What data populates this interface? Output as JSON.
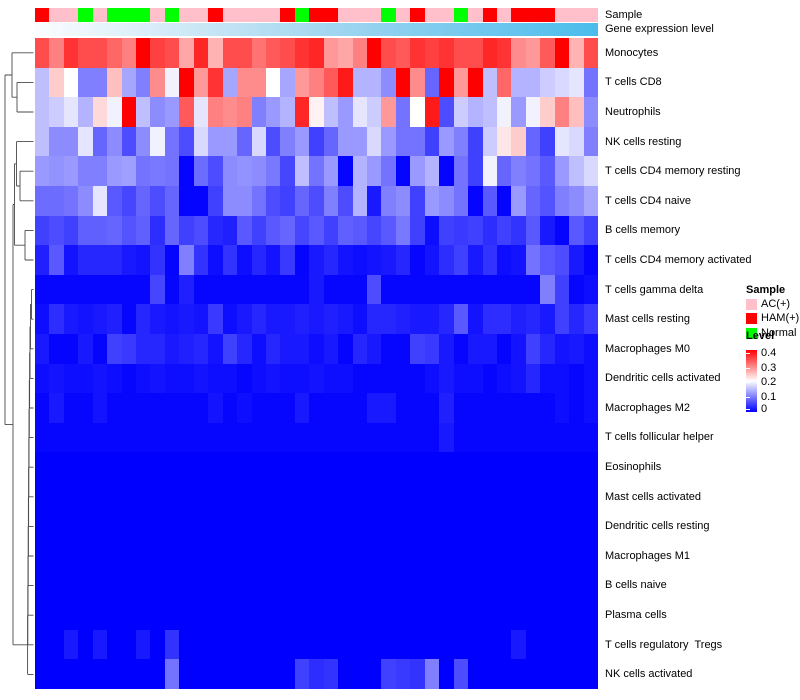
{
  "annotations": {
    "sample_label": "Sample",
    "gene_label": "Gene expression level",
    "annotation_colors": {
      "AC(+)": "#FFC0CB",
      "HAM(+)": "#FF0000",
      "Normal": "#00FF00"
    },
    "gene_gradient": {
      "start": "#FBFDFF",
      "mid": "#A8D8F0",
      "end": "#4ABCEC"
    }
  },
  "legend": {
    "sample_title": "Sample",
    "sample_items": [
      {
        "label": "AC(+)",
        "color": "#FFC0CB"
      },
      {
        "label": "HAM(+)",
        "color": "#FF0000"
      },
      {
        "label": "Normal",
        "color": "#00FF00"
      }
    ],
    "level_title": "Level",
    "level_ticks": [
      "0.4",
      "0.3",
      "0.2",
      "0.1",
      "0"
    ],
    "level_gradient": {
      "top": "#FF0000",
      "mid": "#FFFFFF",
      "bottom": "#0000FF"
    }
  },
  "chart_data": {
    "type": "heatmap",
    "value_range": [
      0,
      0.4
    ],
    "colormap": {
      "low": "#0000FF",
      "mid": "#FFFFFF",
      "high": "#FF0000",
      "mid_value": 0.2
    },
    "n_columns": 39,
    "column_annotations": {
      "Sample": [
        "HAM(+)",
        "AC(+)",
        "AC(+)",
        "Normal",
        "AC(+)",
        "Normal",
        "Normal",
        "Normal",
        "AC(+)",
        "Normal",
        "AC(+)",
        "AC(+)",
        "HAM(+)",
        "AC(+)",
        "AC(+)",
        "AC(+)",
        "AC(+)",
        "HAM(+)",
        "Normal",
        "HAM(+)",
        "HAM(+)",
        "AC(+)",
        "AC(+)",
        "AC(+)",
        "Normal",
        "AC(+)",
        "HAM(+)",
        "AC(+)",
        "AC(+)",
        "Normal",
        "AC(+)",
        "HAM(+)",
        "AC(+)",
        "HAM(+)",
        "HAM(+)",
        "HAM(+)",
        "AC(+)",
        "AC(+)",
        "AC(+)"
      ],
      "Gene expression level": "continuous white-to-skyblue, increasing left to right"
    },
    "row_labels": [
      "Monocytes",
      "T cells CD8",
      "Neutrophils",
      "NK cells resting",
      "T cells CD4 memory resting",
      "T cells CD4 naive",
      "B cells memory",
      "T cells CD4 memory activated",
      "T cells gamma delta",
      "Mast cells resting",
      "Macrophages M0",
      "Dendritic cells activated",
      "Macrophages M2",
      "T cells follicular helper",
      "Eosinophils",
      "Mast cells activated",
      "Dendritic cells resting",
      "Macrophages M1",
      "B cells naive",
      "Plasma cells",
      "T cells regulatory  Tregs",
      "NK cells activated"
    ],
    "values": [
      [
        0.34,
        0.3,
        0.36,
        0.34,
        0.34,
        0.32,
        0.3,
        0.4,
        0.35,
        0.34,
        0.27,
        0.37,
        0.26,
        0.34,
        0.34,
        0.31,
        0.33,
        0.34,
        0.36,
        0.37,
        0.28,
        0.27,
        0.3,
        0.4,
        0.34,
        0.33,
        0.36,
        0.35,
        0.36,
        0.34,
        0.34,
        0.37,
        0.36,
        0.29,
        0.28,
        0.33,
        0.4,
        0.26,
        0.34
      ],
      [
        0.15,
        0.24,
        0.2,
        0.1,
        0.1,
        0.25,
        0.13,
        0.1,
        0.29,
        0.19,
        0.4,
        0.28,
        0.36,
        0.13,
        0.29,
        0.29,
        0.2,
        0.13,
        0.28,
        0.3,
        0.33,
        0.38,
        0.14,
        0.14,
        0.11,
        0.4,
        0.29,
        0.08,
        0.4,
        0.28,
        0.4,
        0.15,
        0.32,
        0.14,
        0.14,
        0.16,
        0.17,
        0.18,
        0.09
      ],
      [
        0.15,
        0.16,
        0.18,
        0.14,
        0.23,
        0.19,
        0.4,
        0.15,
        0.11,
        0.12,
        0.33,
        0.18,
        0.3,
        0.29,
        0.3,
        0.1,
        0.12,
        0.14,
        0.37,
        0.21,
        0.15,
        0.12,
        0.18,
        0.16,
        0.28,
        0.09,
        0.2,
        0.38,
        0.06,
        0.16,
        0.14,
        0.15,
        0.19,
        0.12,
        0.19,
        0.24,
        0.3,
        0.25,
        0.11
      ],
      [
        0.15,
        0.11,
        0.11,
        0.18,
        0.08,
        0.11,
        0.06,
        0.11,
        0.19,
        0.09,
        0.06,
        0.17,
        0.12,
        0.12,
        0.08,
        0.17,
        0.06,
        0.1,
        0.12,
        0.05,
        0.08,
        0.12,
        0.12,
        0.17,
        0.12,
        0.09,
        0.09,
        0.05,
        0.12,
        0.1,
        0.05,
        0.16,
        0.22,
        0.24,
        0.08,
        0.05,
        0.18,
        0.17,
        0.1
      ],
      [
        0.12,
        0.115,
        0.12,
        0.1,
        0.1,
        0.12,
        0.125,
        0.09,
        0.095,
        0.09,
        0.003,
        0.085,
        0.06,
        0.11,
        0.115,
        0.11,
        0.095,
        0.055,
        0.15,
        0.09,
        0.12,
        0.003,
        0.14,
        0.12,
        0.09,
        0.003,
        0.12,
        0.14,
        0.003,
        0.09,
        0.05,
        0.19,
        0.08,
        0.1,
        0.09,
        0.07,
        0.12,
        0.15,
        0.17
      ],
      [
        0.085,
        0.085,
        0.09,
        0.11,
        0.18,
        0.07,
        0.055,
        0.08,
        0.06,
        0.08,
        0.003,
        0.003,
        0.05,
        0.11,
        0.11,
        0.09,
        0.06,
        0.05,
        0.08,
        0.06,
        0.1,
        0.06,
        0.14,
        0.02,
        0.1,
        0.11,
        0.05,
        0.12,
        0.11,
        0.09,
        0.003,
        0.07,
        0.003,
        0.12,
        0.08,
        0.065,
        0.1,
        0.11,
        0.13
      ],
      [
        0.05,
        0.06,
        0.05,
        0.075,
        0.075,
        0.08,
        0.065,
        0.075,
        0.035,
        0.08,
        0.05,
        0.06,
        0.03,
        0.025,
        0.07,
        0.05,
        0.07,
        0.08,
        0.055,
        0.07,
        0.05,
        0.075,
        0.07,
        0.055,
        0.07,
        0.095,
        0.05,
        0.01,
        0.05,
        0.045,
        0.05,
        0.035,
        0.05,
        0.04,
        0.07,
        0.02,
        0.003,
        0.07,
        0.05
      ],
      [
        0.025,
        0.07,
        0.015,
        0.03,
        0.03,
        0.03,
        0.02,
        0.015,
        0.04,
        0.003,
        0.1,
        0.04,
        0.01,
        0.04,
        0.01,
        0.03,
        0.015,
        0.045,
        0.003,
        0.02,
        0.03,
        0.015,
        0.01,
        0.015,
        0.02,
        0.03,
        0.005,
        0.015,
        0.035,
        0.05,
        0.02,
        0.04,
        0.01,
        0.015,
        0.09,
        0.07,
        0.06,
        0.02,
        0.003
      ],
      [
        0.005,
        0.005,
        0.005,
        0.005,
        0.005,
        0.005,
        0.005,
        0.005,
        0.055,
        0.005,
        0.025,
        0.005,
        0.005,
        0.005,
        0.005,
        0.005,
        0.005,
        0.005,
        0.005,
        0.02,
        0.005,
        0.005,
        0.005,
        0.06,
        0.005,
        0.005,
        0.005,
        0.005,
        0.005,
        0.005,
        0.005,
        0.005,
        0.005,
        0.005,
        0.005,
        0.1,
        0.05,
        0.005,
        0.01
      ],
      [
        0.01,
        0.035,
        0.02,
        0.015,
        0.02,
        0.025,
        0.005,
        0.03,
        0.02,
        0.015,
        0.02,
        0.015,
        0.045,
        0.01,
        0.02,
        0.03,
        0.02,
        0.02,
        0.025,
        0.02,
        0.025,
        0.02,
        0.01,
        0.03,
        0.03,
        0.025,
        0.02,
        0.02,
        0.03,
        0.07,
        0.015,
        0.035,
        0.035,
        0.025,
        0.03,
        0.02,
        0.05,
        0.03,
        0.045
      ],
      [
        0.02,
        0.003,
        0.003,
        0.02,
        0.003,
        0.05,
        0.045,
        0.03,
        0.03,
        0.02,
        0.025,
        0.03,
        0.015,
        0.05,
        0.03,
        0.01,
        0.03,
        0.02,
        0.02,
        0.01,
        0.02,
        0.003,
        0.03,
        0.02,
        0.005,
        0.005,
        0.05,
        0.045,
        0.02,
        0.005,
        0.02,
        0.02,
        0.003,
        0.015,
        0.05,
        0.03,
        0.015,
        0.02,
        0.01
      ],
      [
        0.01,
        0.015,
        0.01,
        0.01,
        0.015,
        0.01,
        0.005,
        0.01,
        0.015,
        0.01,
        0.01,
        0.015,
        0.01,
        0.01,
        0.005,
        0.01,
        0.015,
        0.01,
        0.01,
        0.015,
        0.01,
        0.01,
        0.005,
        0.005,
        0.005,
        0.005,
        0.005,
        0.01,
        0.02,
        0.01,
        0.01,
        0.005,
        0.01,
        0.015,
        0.03,
        0.01,
        0.01,
        0.005,
        0.01
      ],
      [
        0.005,
        0.02,
        0.005,
        0.005,
        0.015,
        0.005,
        0.005,
        0.005,
        0.005,
        0.005,
        0.005,
        0.005,
        0.015,
        0.005,
        0.01,
        0.005,
        0.005,
        0.005,
        0.02,
        0.005,
        0.005,
        0.005,
        0.005,
        0.02,
        0.02,
        0.005,
        0.005,
        0.005,
        0.025,
        0.005,
        0.005,
        0.005,
        0.005,
        0.005,
        0.005,
        0.005,
        0.01,
        0.005,
        0.01
      ],
      [
        0.005,
        0.005,
        0.005,
        0.005,
        0.005,
        0.005,
        0.005,
        0.005,
        0.005,
        0.005,
        0.005,
        0.005,
        0.005,
        0.005,
        0.005,
        0.005,
        0.005,
        0.005,
        0.005,
        0.005,
        0.005,
        0.005,
        0.005,
        0.005,
        0.005,
        0.005,
        0.005,
        0.005,
        0.02,
        0.005,
        0.005,
        0.005,
        0.005,
        0.005,
        0.005,
        0.005,
        0.005,
        0.005,
        0.005
      ],
      [
        0,
        0,
        0,
        0,
        0,
        0,
        0,
        0,
        0,
        0,
        0,
        0,
        0,
        0,
        0,
        0,
        0,
        0,
        0,
        0,
        0,
        0,
        0,
        0,
        0,
        0,
        0,
        0,
        0,
        0,
        0,
        0,
        0,
        0,
        0,
        0,
        0,
        0,
        0
      ],
      [
        0,
        0,
        0,
        0,
        0,
        0,
        0,
        0,
        0,
        0,
        0,
        0,
        0,
        0,
        0,
        0,
        0,
        0,
        0,
        0,
        0,
        0,
        0,
        0,
        0,
        0,
        0,
        0,
        0,
        0,
        0,
        0,
        0,
        0,
        0,
        0,
        0,
        0,
        0
      ],
      [
        0,
        0,
        0,
        0,
        0,
        0,
        0,
        0,
        0,
        0,
        0,
        0,
        0,
        0,
        0,
        0,
        0,
        0,
        0,
        0,
        0,
        0,
        0,
        0,
        0,
        0,
        0,
        0,
        0,
        0,
        0,
        0,
        0,
        0,
        0,
        0,
        0,
        0,
        0
      ],
      [
        0,
        0,
        0,
        0,
        0,
        0,
        0,
        0,
        0,
        0,
        0,
        0,
        0,
        0,
        0,
        0,
        0,
        0,
        0,
        0,
        0,
        0,
        0,
        0,
        0,
        0,
        0,
        0,
        0,
        0,
        0,
        0,
        0,
        0,
        0,
        0,
        0,
        0,
        0
      ],
      [
        0,
        0,
        0,
        0,
        0,
        0,
        0,
        0,
        0,
        0,
        0,
        0,
        0,
        0,
        0,
        0,
        0,
        0,
        0,
        0,
        0,
        0,
        0,
        0,
        0,
        0,
        0,
        0,
        0,
        0,
        0,
        0,
        0,
        0,
        0,
        0,
        0,
        0,
        0
      ],
      [
        0,
        0,
        0,
        0,
        0,
        0,
        0,
        0,
        0,
        0,
        0,
        0,
        0,
        0,
        0,
        0,
        0,
        0,
        0,
        0,
        0,
        0,
        0,
        0,
        0,
        0,
        0,
        0,
        0,
        0,
        0,
        0,
        0,
        0,
        0,
        0,
        0,
        0,
        0
      ],
      [
        0,
        0,
        0.02,
        0,
        0.02,
        0,
        0,
        0.02,
        0,
        0.04,
        0,
        0,
        0,
        0,
        0,
        0,
        0,
        0,
        0,
        0,
        0,
        0,
        0,
        0,
        0,
        0,
        0,
        0,
        0,
        0,
        0,
        0,
        0,
        0.02,
        0,
        0,
        0,
        0,
        0
      ],
      [
        0,
        0,
        0,
        0,
        0,
        0,
        0,
        0,
        0,
        0.09,
        0,
        0,
        0,
        0,
        0,
        0,
        0,
        0,
        0.05,
        0.035,
        0.04,
        0,
        0,
        0,
        0.05,
        0.045,
        0.04,
        0.1,
        0,
        0.06,
        0,
        0,
        0,
        0,
        0,
        0,
        0,
        0,
        0
      ]
    ]
  }
}
